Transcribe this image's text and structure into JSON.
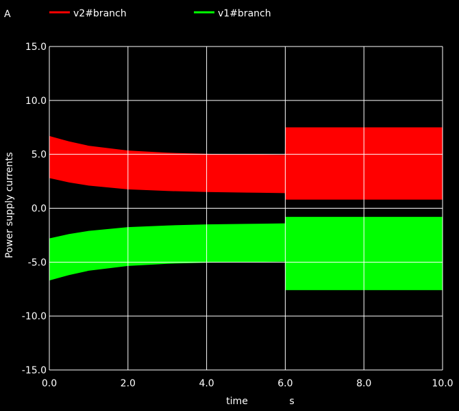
{
  "chart_data": {
    "type": "area",
    "unit_label": "A",
    "xlabel": "time",
    "xunit": "s",
    "ylabel": "Power supply currents",
    "xlim": [
      0,
      10
    ],
    "ylim": [
      -15,
      15
    ],
    "x_ticks": [
      "0.0",
      "2.0",
      "4.0",
      "6.0",
      "8.0",
      "10.0"
    ],
    "y_ticks": [
      "15.0",
      "10.0",
      "5.0",
      "0.0",
      "-5.0",
      "-10.0",
      "-15.0"
    ],
    "grid": true,
    "legend_position": "top",
    "series": [
      {
        "name": "v2#branch",
        "color": "#ff0000",
        "x": [
          0.0,
          0.5,
          1.0,
          2.0,
          3.0,
          4.0,
          5.0,
          5.99,
          6.0,
          7.0,
          8.0,
          9.0,
          10.0
        ],
        "upper": [
          6.7,
          6.2,
          5.8,
          5.35,
          5.15,
          5.05,
          5.0,
          4.95,
          7.5,
          7.5,
          7.5,
          7.5,
          7.5
        ],
        "lower": [
          2.8,
          2.4,
          2.1,
          1.75,
          1.6,
          1.5,
          1.45,
          1.4,
          0.8,
          0.8,
          0.8,
          0.8,
          0.8
        ]
      },
      {
        "name": "v1#branch",
        "color": "#00ff00",
        "x": [
          0.0,
          0.5,
          1.0,
          2.0,
          3.0,
          4.0,
          5.0,
          5.99,
          6.0,
          7.0,
          8.0,
          9.0,
          10.0
        ],
        "upper": [
          -2.8,
          -2.4,
          -2.1,
          -1.75,
          -1.6,
          -1.5,
          -1.45,
          -1.4,
          -0.8,
          -0.8,
          -0.8,
          -0.8,
          -0.8
        ],
        "lower": [
          -6.7,
          -6.2,
          -5.8,
          -5.35,
          -5.15,
          -5.05,
          -5.0,
          -4.95,
          -7.6,
          -7.6,
          -7.6,
          -7.6,
          -7.6
        ]
      }
    ]
  }
}
